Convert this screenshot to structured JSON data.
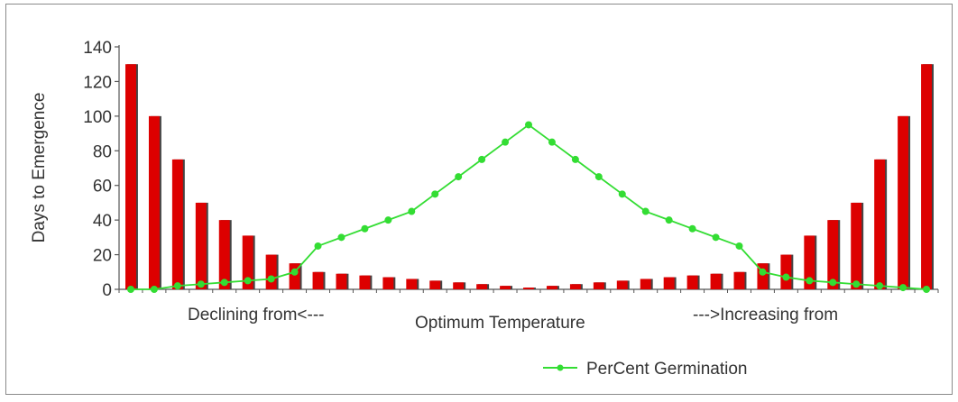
{
  "chart_data": {
    "type": "bar",
    "ylabel": "Days to Emergence",
    "ylim": [
      0,
      140
    ],
    "yticks": [
      0,
      20,
      40,
      60,
      80,
      100,
      120,
      140
    ],
    "category_labels": [
      "Declining from<---",
      "Optimum Temperature",
      "--->Increasing from"
    ],
    "grid": false,
    "legend_position": "bottom-right",
    "series": [
      {
        "kind": "bar",
        "color": "#dd0000",
        "values": [
          130,
          100,
          75,
          50,
          40,
          31,
          20,
          15,
          10,
          9,
          8,
          7,
          6,
          5,
          4,
          3,
          2,
          1,
          2,
          3,
          4,
          5,
          6,
          7,
          8,
          9,
          10,
          15,
          20,
          31,
          40,
          50,
          75,
          100,
          130
        ]
      },
      {
        "kind": "line",
        "name": "PerCent Germination",
        "color": "#33dd33",
        "values": [
          0,
          0,
          2,
          3,
          4,
          5,
          6,
          10,
          25,
          30,
          35,
          40,
          45,
          55,
          65,
          75,
          85,
          95,
          85,
          75,
          65,
          55,
          45,
          40,
          35,
          30,
          25,
          10,
          7,
          5,
          4,
          3,
          2,
          1,
          0
        ]
      }
    ]
  }
}
